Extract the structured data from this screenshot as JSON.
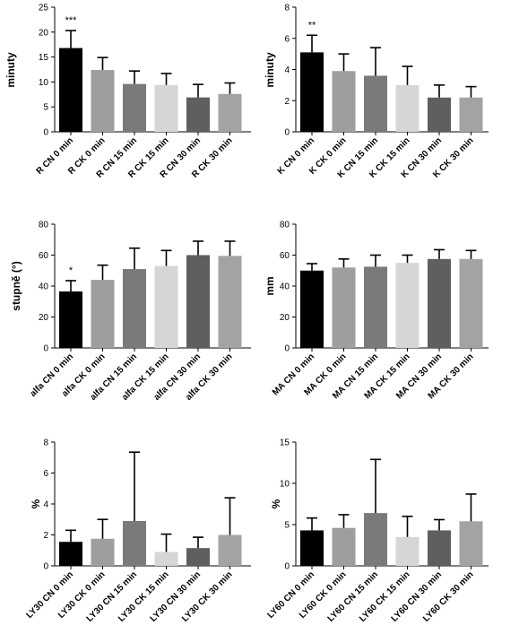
{
  "chart_data": [
    {
      "type": "bar",
      "ylabel": "minuty",
      "ylim": [
        0,
        25
      ],
      "yticks": [
        0,
        5,
        10,
        15,
        20,
        25
      ],
      "categories": [
        "R CN 0 min",
        "R CK 0 min",
        "R CN 15 min",
        "R CK 15 min",
        "R CN 30 min",
        "R CK 30 min"
      ],
      "values": [
        16.8,
        12.4,
        9.6,
        9.4,
        6.9,
        7.6
      ],
      "errors": [
        3.5,
        2.5,
        2.6,
        2.3,
        2.6,
        2.2
      ],
      "annotations": [
        {
          "category": "R CN 0 min",
          "text": "***"
        }
      ]
    },
    {
      "type": "bar",
      "ylabel": "minuty",
      "ylim": [
        0,
        8
      ],
      "yticks": [
        0,
        2,
        4,
        6,
        8
      ],
      "categories": [
        "K CN 0 min",
        "K CK 0 min",
        "K CN 15 min",
        "K CK 15 min",
        "K CN 30 min",
        "K CK 30 min"
      ],
      "values": [
        5.1,
        3.9,
        3.6,
        3.0,
        2.2,
        2.2
      ],
      "errors": [
        1.1,
        1.1,
        1.8,
        1.2,
        0.8,
        0.7
      ],
      "annotations": [
        {
          "category": "K CN 0 min",
          "text": "**"
        }
      ]
    },
    {
      "type": "bar",
      "ylabel": "stupně (°)",
      "ylim": [
        0,
        80
      ],
      "yticks": [
        0,
        20,
        40,
        60,
        80
      ],
      "categories": [
        "alfa CN 0 min",
        "alfa CK 0 min",
        "alfa CN 15 min",
        "alfa CK 15 min",
        "alfa CN 30 min",
        "alfa CK 30 min"
      ],
      "values": [
        36.5,
        44.0,
        51.0,
        53.0,
        60.0,
        59.5
      ],
      "errors": [
        7.0,
        9.5,
        13.5,
        10.0,
        9.0,
        9.5
      ],
      "annotations": [
        {
          "category": "alfa CN 0 min",
          "text": "*"
        }
      ]
    },
    {
      "type": "bar",
      "ylabel": "mm",
      "ylim": [
        0,
        80
      ],
      "yticks": [
        0,
        20,
        40,
        60,
        80
      ],
      "categories": [
        "MA CN 0 min",
        "MA CK 0 min",
        "MA CN 15 min",
        "MA CK 15 min",
        "MA CN 30 min",
        "MA CK 30 min"
      ],
      "values": [
        50.0,
        52.0,
        52.5,
        55.0,
        57.5,
        57.5
      ],
      "errors": [
        4.5,
        5.5,
        7.5,
        5.0,
        6.0,
        5.5
      ],
      "annotations": []
    },
    {
      "type": "bar",
      "ylabel": "%",
      "ylim": [
        0,
        8
      ],
      "yticks": [
        0,
        2,
        4,
        6,
        8
      ],
      "categories": [
        "LY30 CN 0 min",
        "LY30 CK 0 min",
        "LY30 CN 15 min",
        "LY30 CK 15 min",
        "LY30 CN 30 min",
        "LY30 CK 30 min"
      ],
      "values": [
        1.55,
        1.75,
        2.9,
        0.9,
        1.15,
        2.0
      ],
      "errors": [
        0.75,
        1.25,
        4.45,
        1.15,
        0.7,
        2.4
      ],
      "annotations": []
    },
    {
      "type": "bar",
      "ylabel": "%",
      "ylim": [
        0,
        15
      ],
      "yticks": [
        0,
        5,
        10,
        15
      ],
      "categories": [
        "LY60 CN 0 min",
        "LY60 CK 0 min",
        "LY60 CN 15 min",
        "LY60 CK 15 min",
        "LY60 CN 30  min",
        "LY60 CK 30 min"
      ],
      "values": [
        4.3,
        4.6,
        6.4,
        3.5,
        4.3,
        5.4
      ],
      "errors": [
        1.5,
        1.6,
        6.5,
        2.5,
        1.3,
        3.3
      ],
      "annotations": []
    }
  ],
  "bar_colors": [
    "#000000",
    "#9e9e9e",
    "#7a7a7a",
    "#d6d6d6",
    "#5f5f5f",
    "#a3a3a3"
  ],
  "axis_color": "#000000"
}
